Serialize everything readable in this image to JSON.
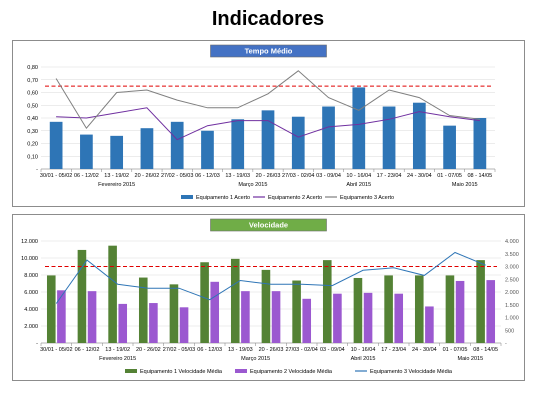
{
  "page": {
    "title": "Indicadores"
  },
  "chart_data": [
    {
      "type": "bar",
      "title": "Tempo Médio",
      "title_bg": "#4472c4",
      "categories": [
        "30/01 - 05/02",
        "06 - 12/02",
        "13 - 19/02",
        "20 - 26/02",
        "27/02 - 05/03",
        "06 - 12/03",
        "13 - 19/03",
        "20 - 26/03",
        "27/03 - 02/04",
        "03 - 09/04",
        "10 - 16/04",
        "17 - 23/04",
        "24 - 30/04",
        "01 - 07/05",
        "08 - 14/05"
      ],
      "months": [
        {
          "label": "Fevereiro 2015",
          "center_index": 2
        },
        {
          "label": "Março 2015",
          "center_index": 6.5
        },
        {
          "label": "Abril 2015",
          "center_index": 10
        },
        {
          "label": "Maio 2015",
          "center_index": 13.5
        }
      ],
      "ylim": [
        0,
        0.8
      ],
      "yticks": [
        "-",
        "0,10",
        "0,20",
        "0,30",
        "0,40",
        "0,50",
        "0,60",
        "0,70",
        "0,80"
      ],
      "target": 0.65,
      "series": [
        {
          "name": "Equipamento 1 Acerto",
          "kind": "bar",
          "color": "#2e75b6",
          "values": [
            0.37,
            0.27,
            0.26,
            0.32,
            0.37,
            0.3,
            0.39,
            0.46,
            0.41,
            0.49,
            0.64,
            0.49,
            0.52,
            0.34,
            0.4
          ]
        },
        {
          "name": "Equipamento 2 Acerto",
          "kind": "line",
          "color": "#7030a0",
          "values": [
            0.41,
            0.4,
            0.44,
            0.48,
            0.23,
            0.34,
            0.38,
            0.38,
            0.25,
            0.33,
            0.35,
            0.39,
            0.45,
            0.41,
            0.38
          ]
        },
        {
          "name": "Equipamento 3 Acerto",
          "kind": "line",
          "color": "#7f7f7f",
          "values": [
            0.71,
            0.32,
            0.6,
            0.62,
            0.54,
            0.48,
            0.48,
            0.59,
            0.77,
            0.56,
            0.46,
            0.62,
            0.56,
            0.42,
            0.39
          ]
        }
      ]
    },
    {
      "type": "bar",
      "title": "Velocidade",
      "title_bg": "#70ad47",
      "categories": [
        "30/01 - 05/02",
        "06 - 12/02",
        "13 - 19/02",
        "20 - 26/02",
        "27/02 - 05/03",
        "06 - 12/03",
        "13 - 19/03",
        "20 - 26/03",
        "27/03 - 02/04",
        "03 - 09/04",
        "10 - 16/04",
        "17 - 23/04",
        "24 - 30/04",
        "01 - 07/05",
        "08 - 14/05"
      ],
      "months": [
        {
          "label": "Fevereiro 2015",
          "center_index": 2
        },
        {
          "label": "Março 2015",
          "center_index": 6.5
        },
        {
          "label": "Abril 2015",
          "center_index": 10
        },
        {
          "label": "Maio 2015",
          "center_index": 13.5
        }
      ],
      "ylim": [
        0,
        12000
      ],
      "yticks": [
        "-",
        "2.000",
        "4.000",
        "6.000",
        "8.000",
        "10.000",
        "12.000"
      ],
      "y2lim": [
        0,
        4000
      ],
      "y2ticks": [
        "-",
        "500",
        "1.000",
        "1.500",
        "2.000",
        "2.500",
        "3.000",
        "3.500",
        "4.000"
      ],
      "target": 9000,
      "series": [
        {
          "name": "Equipamento 1 Velocidade Média",
          "kind": "bar",
          "axis": "left",
          "color": "#548235",
          "values": [
            7950,
            10950,
            11450,
            7700,
            6900,
            9500,
            9900,
            8600,
            7350,
            9750,
            7650,
            7950,
            7950,
            7950,
            9750
          ]
        },
        {
          "name": "Equipamento 2 Velocidade Média",
          "kind": "bar",
          "axis": "left",
          "color": "#9b59d0",
          "values": [
            6200,
            6100,
            4600,
            4700,
            4200,
            7200,
            6100,
            6100,
            5200,
            5800,
            5900,
            5800,
            4300,
            7300,
            7400
          ]
        },
        {
          "name": "Equipamento 3 Velocidade Média",
          "kind": "line",
          "axis": "right",
          "color": "#2e75b6",
          "values": [
            1550,
            3250,
            2300,
            2150,
            2150,
            1700,
            2450,
            2300,
            2300,
            2250,
            2850,
            2950,
            2650,
            3550,
            3050
          ]
        }
      ]
    }
  ]
}
